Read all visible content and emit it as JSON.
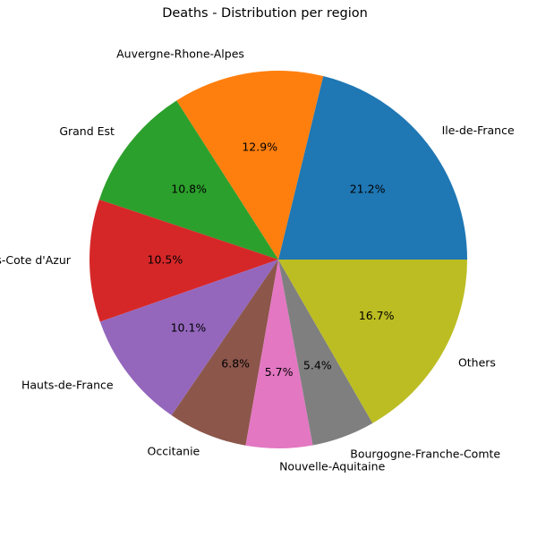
{
  "chart_data": {
    "type": "pie",
    "title": "Deaths - Distribution per region",
    "categories": [
      "Ile-de-France",
      "Auvergne-Rhone-Alpes",
      "Grand Est",
      "Provence-Alpes-Cote d'Azur",
      "Hauts-de-France",
      "Occitanie",
      "Nouvelle-Aquitaine",
      "Bourgogne-Franche-Comte",
      "Others"
    ],
    "values": [
      21.2,
      12.9,
      10.8,
      10.5,
      10.1,
      6.8,
      5.7,
      5.4,
      16.7
    ],
    "percent_labels": [
      "21.2%",
      "12.9%",
      "10.8%",
      "10.5%",
      "10.1%",
      "6.8%",
      "5.7%",
      "5.4%",
      "16.7%"
    ],
    "colors": [
      "#1f77b4",
      "#ff7f0e",
      "#2ca02c",
      "#d62728",
      "#9467bd",
      "#8c564b",
      "#e377c2",
      "#7f7f7f",
      "#bcbd22"
    ],
    "start_angle_deg": 0,
    "direction": "counterclockwise",
    "legend": "none"
  }
}
